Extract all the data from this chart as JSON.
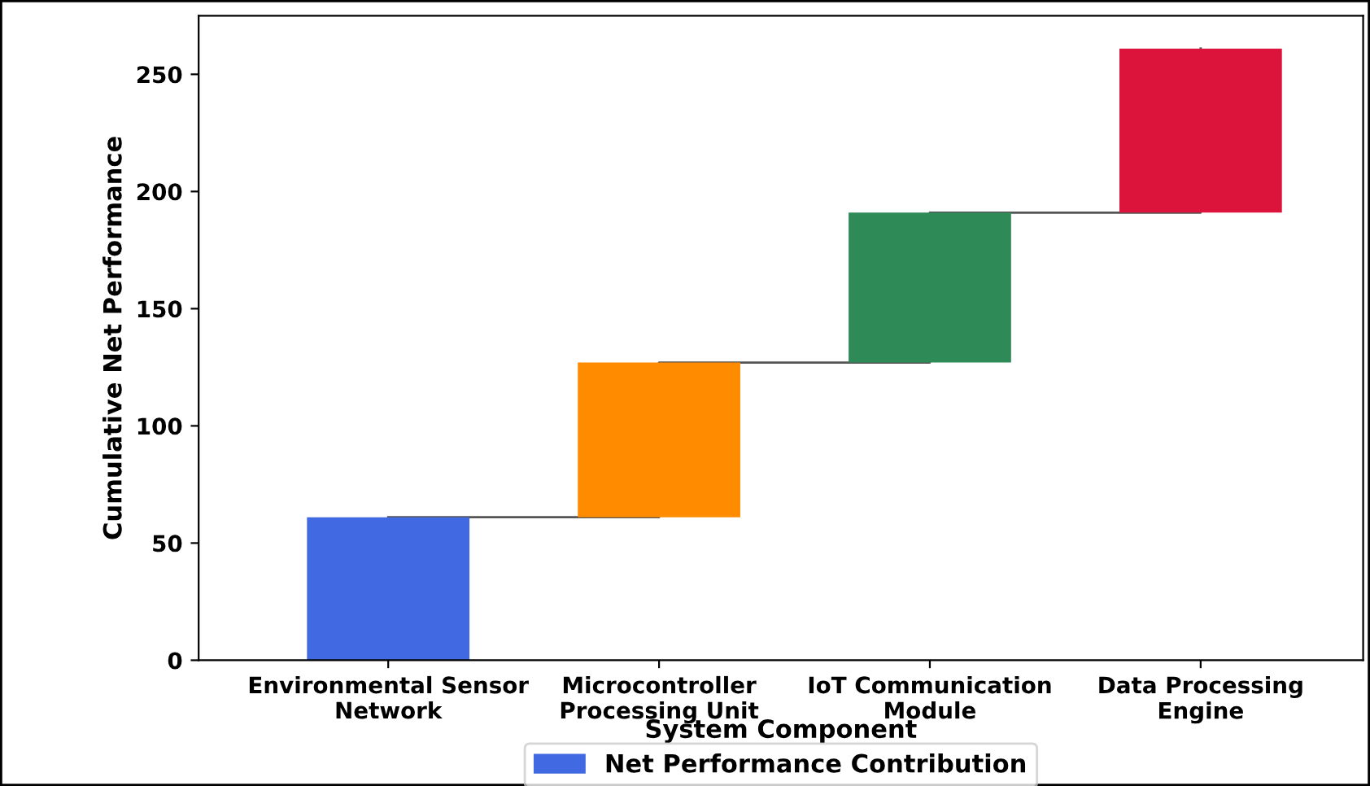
{
  "chart_data": {
    "type": "bar",
    "xlabel": "System Component",
    "ylabel": "Cumulative Net Performance",
    "categories": [
      "Environmental Sensor\nNetwork",
      "Microcontroller\nProcessing Unit",
      "IoT Communication\nModule",
      "Data Processing\nEngine"
    ],
    "series": [
      {
        "name": "Net Performance Contribution",
        "values": [
          61,
          66,
          64,
          70
        ],
        "base": [
          0,
          61,
          127,
          191
        ],
        "colors": [
          "#4169e1",
          "#ff8c00",
          "#2e8b57",
          "#dc143c"
        ]
      },
      {
        "type": "step",
        "color": "#555555",
        "values": [
          61,
          127,
          191,
          261
        ]
      }
    ],
    "ylim": [
      0,
      275
    ],
    "yticks": [
      0,
      50,
      100,
      150,
      200,
      250
    ],
    "grid": false,
    "legend": "bottom"
  }
}
